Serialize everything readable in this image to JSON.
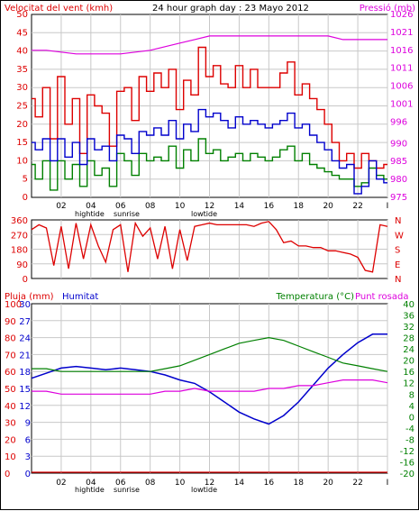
{
  "charts_title": "24 hour graph day : 23 Mayo 2012",
  "chart_data": [
    {
      "type": "line",
      "title": "24 hour graph day : 23 Mayo 2012",
      "ylabel_left": "Velocitat del vent (kmh)",
      "ylabel_right": "Pressió (mb)",
      "x_ticks": [
        "02",
        "04",
        "06",
        "08",
        "10",
        "12",
        "14",
        "16",
        "18",
        "20",
        "22",
        "I"
      ],
      "x_annotations": [
        "hightide",
        "sunrise",
        "lowtide"
      ],
      "ylim_left": [
        0,
        50
      ],
      "y_ticks_left": [
        0,
        5,
        10,
        15,
        20,
        25,
        30,
        35,
        40,
        45,
        50
      ],
      "ylim_right": [
        975,
        1026
      ],
      "y_ticks_right": [
        975,
        980,
        985,
        990,
        996,
        1001,
        1006,
        1011,
        1016,
        1021,
        1026
      ],
      "grid": true,
      "colors": {
        "gust": "#dd0000",
        "wind": "#008000",
        "avg": "#0000cc",
        "pressure": "#dd00dd"
      },
      "series": [
        {
          "key": "gust",
          "x": [
            0,
            0.5,
            1,
            1.5,
            2,
            2.5,
            3,
            3.5,
            4,
            4.5,
            5,
            5.5,
            6,
            6.5,
            7,
            7.5,
            8,
            8.5,
            9,
            9.5,
            10,
            10.5,
            11,
            11.5,
            12,
            12.5,
            13,
            13.5,
            14,
            14.5,
            15,
            15.5,
            16,
            16.5,
            17,
            17.5,
            18,
            18.5,
            19,
            19.5,
            20,
            20.5,
            21,
            21.5,
            22,
            22.5,
            23,
            23.5,
            24
          ],
          "values": [
            27,
            22,
            30,
            16,
            33,
            20,
            27,
            12,
            28,
            25,
            23,
            14,
            29,
            30,
            21,
            33,
            29,
            34,
            30,
            35,
            24,
            32,
            28,
            41,
            33,
            36,
            31,
            30,
            36,
            30,
            35,
            30,
            30,
            30,
            34,
            37,
            28,
            31,
            27,
            24,
            20,
            15,
            10,
            12,
            8,
            12,
            10,
            8,
            9
          ]
        },
        {
          "key": "wind",
          "x": [
            0,
            0.5,
            1,
            1.5,
            2,
            2.5,
            3,
            3.5,
            4,
            4.5,
            5,
            5.5,
            6,
            6.5,
            7,
            7.5,
            8,
            8.5,
            9,
            9.5,
            10,
            10.5,
            11,
            11.5,
            12,
            12.5,
            13,
            13.5,
            14,
            14.5,
            15,
            15.5,
            16,
            16.5,
            17,
            17.5,
            18,
            18.5,
            19,
            19.5,
            20,
            20.5,
            21,
            21.5,
            22,
            22.5,
            23,
            23.5,
            24
          ],
          "values": [
            9,
            5,
            10,
            2,
            10,
            5,
            9,
            3,
            10,
            6,
            8,
            3,
            12,
            10,
            6,
            12,
            10,
            11,
            10,
            14,
            8,
            13,
            10,
            16,
            12,
            13,
            10,
            11,
            12,
            10,
            12,
            11,
            10,
            11,
            13,
            14,
            10,
            12,
            9,
            8,
            7,
            6,
            5,
            5,
            3,
            4,
            8,
            6,
            5
          ]
        },
        {
          "key": "avg",
          "x": [
            0,
            0.5,
            1,
            1.5,
            2,
            2.5,
            3,
            3.5,
            4,
            4.5,
            5,
            5.5,
            6,
            6.5,
            7,
            7.5,
            8,
            8.5,
            9,
            9.5,
            10,
            10.5,
            11,
            11.5,
            12,
            12.5,
            13,
            13.5,
            14,
            14.5,
            15,
            15.5,
            16,
            16.5,
            17,
            17.5,
            18,
            18.5,
            19,
            19.5,
            20,
            20.5,
            21,
            21.5,
            22,
            22.5,
            23,
            23.5,
            24
          ],
          "values": [
            15,
            13,
            16,
            10,
            16,
            11,
            15,
            9,
            16,
            13,
            14,
            10,
            17,
            16,
            12,
            18,
            17,
            19,
            17,
            21,
            16,
            20,
            18,
            24,
            22,
            23,
            21,
            19,
            22,
            20,
            21,
            20,
            19,
            20,
            21,
            23,
            19,
            20,
            17,
            15,
            13,
            10,
            8,
            9,
            1,
            3,
            10,
            5,
            4
          ]
        },
        {
          "key": "pressure",
          "x": [
            0,
            1,
            2,
            3,
            4,
            5,
            6,
            7,
            8,
            9,
            10,
            11,
            12,
            13,
            14,
            15,
            16,
            17,
            18,
            19,
            20,
            21,
            22,
            23,
            24
          ],
          "values": [
            1016,
            1016,
            1015.5,
            1015,
            1015,
            1015,
            1015,
            1015.5,
            1016,
            1017,
            1018,
            1019,
            1020,
            1020,
            1020,
            1020,
            1020,
            1020,
            1020,
            1020,
            1020,
            1019,
            1019,
            1019,
            1019
          ]
        }
      ]
    },
    {
      "type": "scatter",
      "ylabel_right": [
        "N",
        "W",
        "S",
        "E",
        "N"
      ],
      "ylim": [
        0,
        360
      ],
      "y_ticks_left": [
        0,
        90,
        180,
        270,
        360
      ],
      "color": "#dd0000",
      "x": [
        0,
        0.5,
        1,
        1.5,
        2,
        2.5,
        3,
        3.5,
        4,
        4.5,
        5,
        5.5,
        6,
        6.5,
        7,
        7.5,
        8,
        8.5,
        9,
        9.5,
        10,
        10.5,
        11,
        11.5,
        12,
        12.5,
        13,
        13.5,
        14,
        14.5,
        15,
        15.5,
        16,
        16.5,
        17,
        17.5,
        18,
        18.5,
        19,
        19.5,
        20,
        20.5,
        21,
        21.5,
        22,
        22.5,
        23,
        23.5,
        24
      ],
      "values": [
        300,
        330,
        310,
        80,
        320,
        60,
        340,
        120,
        330,
        200,
        100,
        300,
        330,
        40,
        340,
        260,
        310,
        120,
        320,
        60,
        300,
        110,
        320,
        330,
        340,
        330,
        330,
        330,
        330,
        330,
        320,
        340,
        350,
        300,
        220,
        230,
        200,
        200,
        190,
        190,
        170,
        170,
        160,
        150,
        130,
        50,
        40,
        330,
        320
      ]
    },
    {
      "type": "line",
      "ylabel_left": "Pluja (mm)",
      "ylabel_left2": "Humitat",
      "ylabel_right": "Temperatura (°C)",
      "ylabel_right2": "Punt rosada",
      "x_ticks": [
        "02",
        "04",
        "06",
        "08",
        "10",
        "12",
        "14",
        "16",
        "18",
        "20",
        "22",
        "I"
      ],
      "x_annotations": [
        "hightide",
        "sunrise",
        "lowtide"
      ],
      "y_ticks_left_rain": [
        0,
        3,
        6,
        9,
        12,
        15,
        18,
        21,
        24,
        27,
        30
      ],
      "y_ticks_left_hum": [
        0,
        10,
        20,
        30,
        40,
        50,
        60,
        70,
        80,
        90,
        100
      ],
      "ylim_right": [
        -20,
        40
      ],
      "y_ticks_right": [
        -20,
        -16,
        -12,
        -8,
        -4,
        0,
        4,
        8,
        12,
        16,
        20,
        24,
        28,
        32,
        36,
        40
      ],
      "grid": true,
      "colors": {
        "rain": "#dd0000",
        "humidity": "#0000cc",
        "temperature": "#008000",
        "dewpoint": "#dd00dd"
      },
      "series": [
        {
          "key": "rain",
          "x": [
            0,
            24
          ],
          "values": [
            0,
            0
          ]
        },
        {
          "key": "humidity",
          "x": [
            0,
            1,
            2,
            3,
            4,
            5,
            6,
            7,
            8,
            9,
            10,
            11,
            12,
            13,
            14,
            15,
            16,
            17,
            18,
            19,
            20,
            21,
            22,
            23,
            24
          ],
          "values": [
            56,
            59,
            62,
            63,
            62,
            61,
            62,
            61,
            60,
            58,
            55,
            53,
            48,
            42,
            36,
            32,
            29,
            34,
            42,
            52,
            62,
            70,
            77,
            82,
            82
          ]
        },
        {
          "key": "temperature",
          "x": [
            0,
            1,
            2,
            3,
            4,
            5,
            6,
            7,
            8,
            9,
            10,
            11,
            12,
            13,
            14,
            15,
            16,
            17,
            18,
            19,
            20,
            21,
            22,
            23,
            24
          ],
          "values": [
            17,
            17,
            16,
            16,
            16,
            16,
            16,
            16,
            16,
            17,
            18,
            20,
            22,
            24,
            26,
            27,
            28,
            27,
            25,
            23,
            21,
            19,
            18,
            17,
            16
          ]
        },
        {
          "key": "dewpoint",
          "x": [
            0,
            1,
            2,
            3,
            4,
            5,
            6,
            7,
            8,
            9,
            10,
            11,
            12,
            13,
            14,
            15,
            16,
            17,
            18,
            19,
            20,
            21,
            22,
            23,
            24
          ],
          "values": [
            9,
            9,
            8,
            8,
            8,
            8,
            8,
            8,
            8,
            9,
            9,
            10,
            9,
            9,
            9,
            9,
            10,
            10,
            11,
            11,
            12,
            13,
            13,
            13,
            12
          ]
        }
      ]
    }
  ]
}
